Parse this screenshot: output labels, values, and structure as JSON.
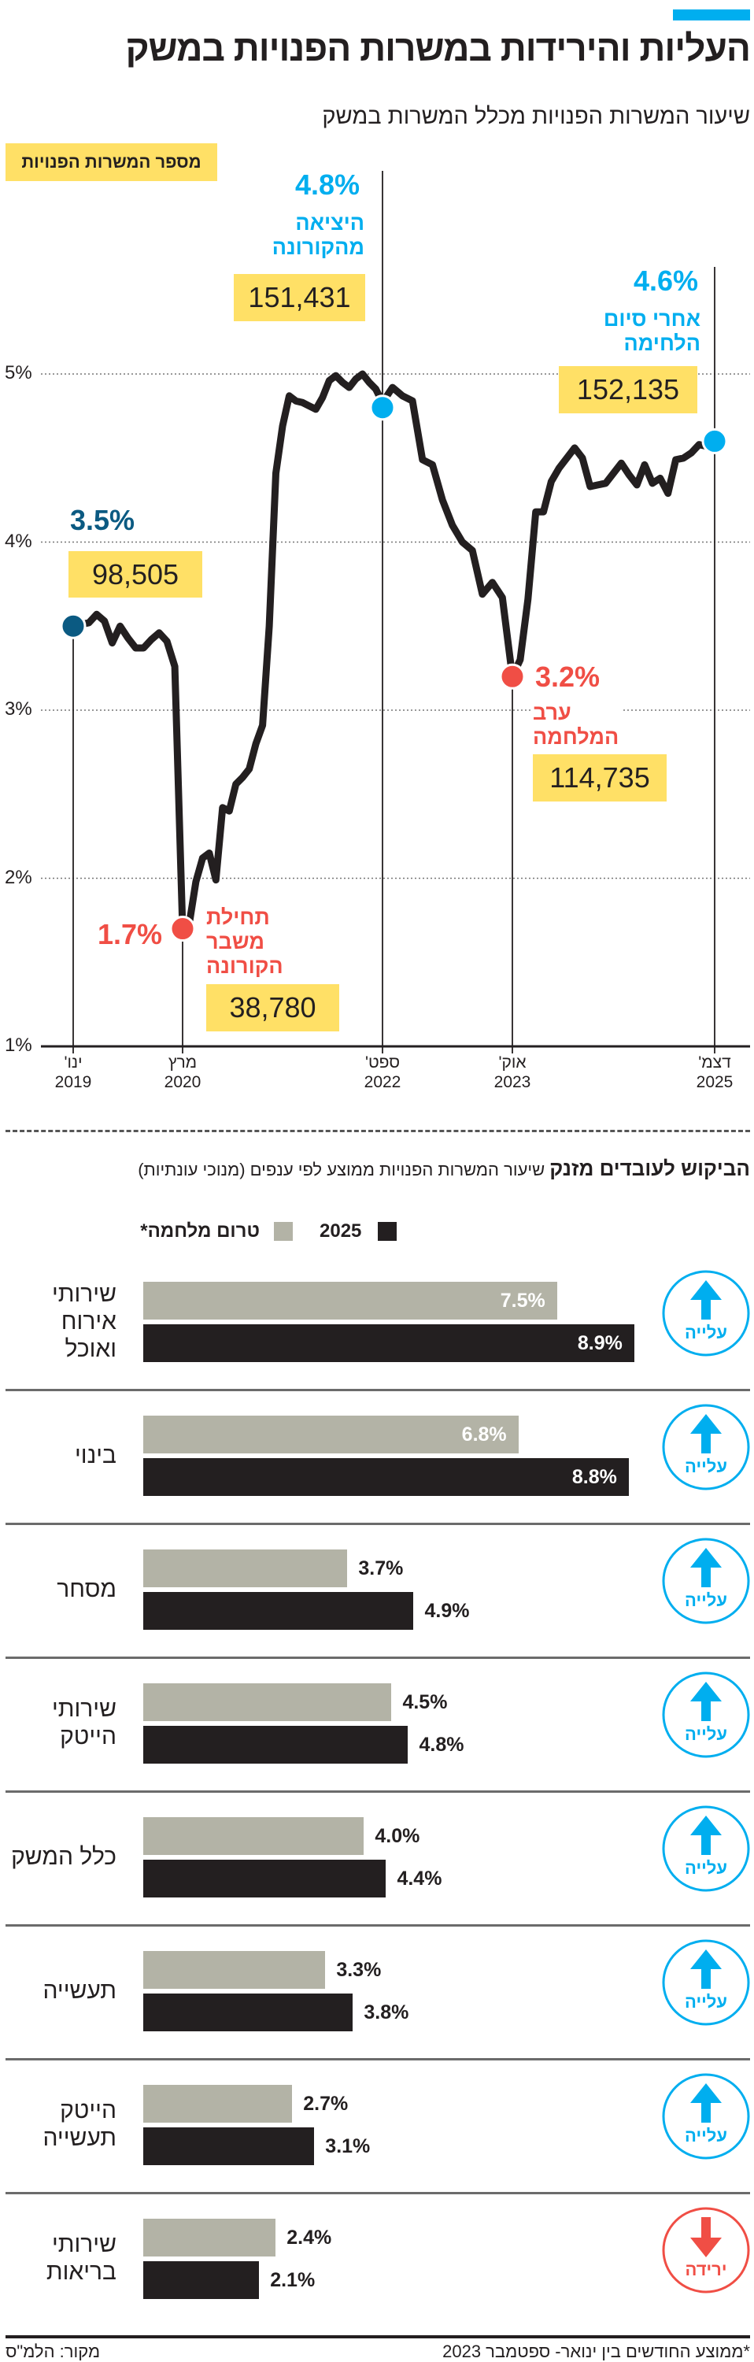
{
  "header": {
    "title": "העליות והירידות במשרות הפנויות במשק",
    "subtitle": "שיעור המשרות הפנויות מכלל המשרות במשק",
    "accent_color": "#00aeef"
  },
  "colors": {
    "line": "#231f20",
    "navy": "#0b5a82",
    "blue": "#00aeef",
    "red": "#f04e45",
    "yellow": "#ffe066",
    "bar_prewar": "#b3b3a6",
    "bar_2025": "#231f20"
  },
  "chart_data": [
    {
      "type": "line",
      "title": "שיעור המשרות הפנויות מכלל המשרות במשק",
      "legend_box": "מספר המשרות הפנויות",
      "ylim": [
        1,
        5
      ],
      "yticks": [
        "1%",
        "2%",
        "3%",
        "4%",
        "5%"
      ],
      "yvalues": [
        1,
        2,
        3,
        4,
        5
      ],
      "grid": "dotted horizontal",
      "xticks": [
        {
          "date": "2019-01",
          "month": "ינו'",
          "year": "2019"
        },
        {
          "date": "2020-03",
          "month": "מרץ",
          "year": "2020"
        },
        {
          "date": "2022-09",
          "month": "ספט'",
          "year": "2022"
        },
        {
          "date": "2023-10",
          "month": "אוק'",
          "year": "2023"
        },
        {
          "date": "2025-12",
          "month": "דצמ'",
          "year": "2025"
        }
      ],
      "series": [
        [
          "2019-01",
          3.5
        ],
        [
          "2019-02",
          3.51
        ],
        [
          "2019-03",
          3.52
        ],
        [
          "2019-04",
          3.57
        ],
        [
          "2019-05",
          3.53
        ],
        [
          "2019-06",
          3.4
        ],
        [
          "2019-07",
          3.5
        ],
        [
          "2019-08",
          3.43
        ],
        [
          "2019-09",
          3.37
        ],
        [
          "2019-10",
          3.37
        ],
        [
          "2019-11",
          3.42
        ],
        [
          "2019-12",
          3.46
        ],
        [
          "2020-01",
          3.41
        ],
        [
          "2020-02",
          3.26
        ],
        [
          "2020-03",
          1.7
        ],
        [
          "2020-04",
          1.73
        ],
        [
          "2020-05",
          1.98
        ],
        [
          "2020-06",
          2.12
        ],
        [
          "2020-07",
          2.15
        ],
        [
          "2020-08",
          1.99
        ],
        [
          "2020-09",
          2.42
        ],
        [
          "2020-10",
          2.4
        ],
        [
          "2020-11",
          2.56
        ],
        [
          "2020-12",
          2.6
        ],
        [
          "2021-01",
          2.65
        ],
        [
          "2021-02",
          2.8
        ],
        [
          "2021-03",
          2.91
        ],
        [
          "2021-04",
          3.5
        ],
        [
          "2021-05",
          4.41
        ],
        [
          "2021-06",
          4.69
        ],
        [
          "2021-07",
          4.87
        ],
        [
          "2021-08",
          4.84
        ],
        [
          "2021-09",
          4.83
        ],
        [
          "2021-10",
          4.81
        ],
        [
          "2021-11",
          4.79
        ],
        [
          "2021-12",
          4.86
        ],
        [
          "2022-01",
          4.96
        ],
        [
          "2022-02",
          4.99
        ],
        [
          "2022-03",
          4.95
        ],
        [
          "2022-04",
          4.92
        ],
        [
          "2022-05",
          4.97
        ],
        [
          "2022-06",
          5.0
        ],
        [
          "2022-07",
          4.95
        ],
        [
          "2022-08",
          4.91
        ],
        [
          "2022-09",
          4.83
        ],
        [
          "2022-10",
          4.92
        ],
        [
          "2022-11",
          4.87
        ],
        [
          "2022-12",
          4.84
        ],
        [
          "2023-01",
          4.49
        ],
        [
          "2023-02",
          4.46
        ],
        [
          "2023-03",
          4.25
        ],
        [
          "2023-04",
          4.1
        ],
        [
          "2023-05",
          4.0
        ],
        [
          "2023-06",
          3.95
        ],
        [
          "2023-07",
          3.69
        ],
        [
          "2023-08",
          3.76
        ],
        [
          "2023-09",
          3.67
        ],
        [
          "2023-10",
          3.2
        ],
        [
          "2023-11",
          3.3
        ],
        [
          "2023-12",
          3.66
        ],
        [
          "2024-01",
          4.18
        ],
        [
          "2024-02",
          4.18
        ],
        [
          "2024-03",
          4.36
        ],
        [
          "2024-04",
          4.44
        ],
        [
          "2024-05",
          4.5
        ],
        [
          "2024-06",
          4.56
        ],
        [
          "2024-07",
          4.5
        ],
        [
          "2024-08",
          4.33
        ],
        [
          "2024-09",
          4.34
        ],
        [
          "2024-10",
          4.35
        ],
        [
          "2024-11",
          4.41
        ],
        [
          "2024-12",
          4.47
        ],
        [
          "2025-01",
          4.4
        ],
        [
          "2025-02",
          4.34
        ],
        [
          "2025-03",
          4.46
        ],
        [
          "2025-04",
          4.35
        ],
        [
          "2025-05",
          4.38
        ],
        [
          "2025-06",
          4.29
        ],
        [
          "2025-07",
          4.49
        ],
        [
          "2025-08",
          4.5
        ],
        [
          "2025-09",
          4.53
        ],
        [
          "2025-10",
          4.58
        ],
        [
          "2025-11",
          4.57
        ],
        [
          "2025-12",
          4.6
        ]
      ],
      "highlights": [
        {
          "date": "2019-01",
          "value": 3.5,
          "label": "3.5%",
          "note": [],
          "count": "98,505",
          "color": "#0b5a82"
        },
        {
          "date": "2020-03",
          "value": 1.7,
          "label": "1.7%",
          "note": [
            "תחילת",
            "משבר",
            "הקורונה"
          ],
          "count": "38,780",
          "color": "#f04e45"
        },
        {
          "date": "2022-09",
          "value": 4.8,
          "label": "4.8%",
          "note": [
            "היציאה",
            "מהקורונה"
          ],
          "count": "151,431",
          "color": "#00aeef"
        },
        {
          "date": "2023-10",
          "value": 3.2,
          "label": "3.2%",
          "note": [
            "ערב",
            "המלחמה"
          ],
          "count": "114,735",
          "color": "#f04e45"
        },
        {
          "date": "2025-12",
          "value": 4.6,
          "label": "4.6%",
          "note": [
            "אחרי סיום",
            "הלחימה"
          ],
          "count": "152,135",
          "color": "#00aeef"
        }
      ]
    },
    {
      "type": "bar",
      "title_bold": "הביקוש לעובדים מזנק",
      "title": "שיעור המשרות הפנויות ממוצע לפי ענפים (מנוכי עונתיות)",
      "legend": [
        {
          "name": "2025",
          "color": "#231f20"
        },
        {
          "name": "טרום מלחמה*",
          "color": "#b3b3a6"
        }
      ],
      "categories": [
        [
          "שירותי",
          "אירוח",
          "ואוכל"
        ],
        [
          "בינוי"
        ],
        [
          "מסחר"
        ],
        [
          "שירותי",
          "הייטק"
        ],
        [
          "כלל המשק"
        ],
        [
          "תעשייה"
        ],
        [
          "הייטק",
          "תעשייה"
        ],
        [
          "שירותי",
          "בריאות"
        ]
      ],
      "series": [
        {
          "name": "טרום מלחמה*",
          "values": [
            7.5,
            6.8,
            3.7,
            4.5,
            4.0,
            3.3,
            2.7,
            2.4
          ],
          "labels": [
            "7.5%",
            "6.8%",
            "3.7%",
            "4.5%",
            "4.0%",
            "3.3%",
            "2.7%",
            "2.4%"
          ]
        },
        {
          "name": "2025",
          "values": [
            8.9,
            8.8,
            4.9,
            4.8,
            4.4,
            3.8,
            3.1,
            2.1
          ],
          "labels": [
            "8.9%",
            "8.8%",
            "4.9%",
            "4.8%",
            "4.4%",
            "3.8%",
            "3.1%",
            "2.1%"
          ]
        }
      ],
      "trend": [
        {
          "dir": "up",
          "label": "עלייה",
          "icon": "arrow-up-icon"
        },
        {
          "dir": "up",
          "label": "עלייה",
          "icon": "arrow-up-icon"
        },
        {
          "dir": "up",
          "label": "עלייה",
          "icon": "arrow-up-icon"
        },
        {
          "dir": "up",
          "label": "עלייה",
          "icon": "arrow-up-icon"
        },
        {
          "dir": "up",
          "label": "עלייה",
          "icon": "arrow-up-icon"
        },
        {
          "dir": "up",
          "label": "עלייה",
          "icon": "arrow-up-icon"
        },
        {
          "dir": "up",
          "label": "עלייה",
          "icon": "arrow-up-icon"
        },
        {
          "dir": "down",
          "label": "ירידה",
          "icon": "arrow-down-icon"
        }
      ]
    }
  ],
  "footer": {
    "note": "*ממוצע החודשים בין ינואר- ספטמבר 2023",
    "source": "מקור: הלמ\"ס"
  }
}
